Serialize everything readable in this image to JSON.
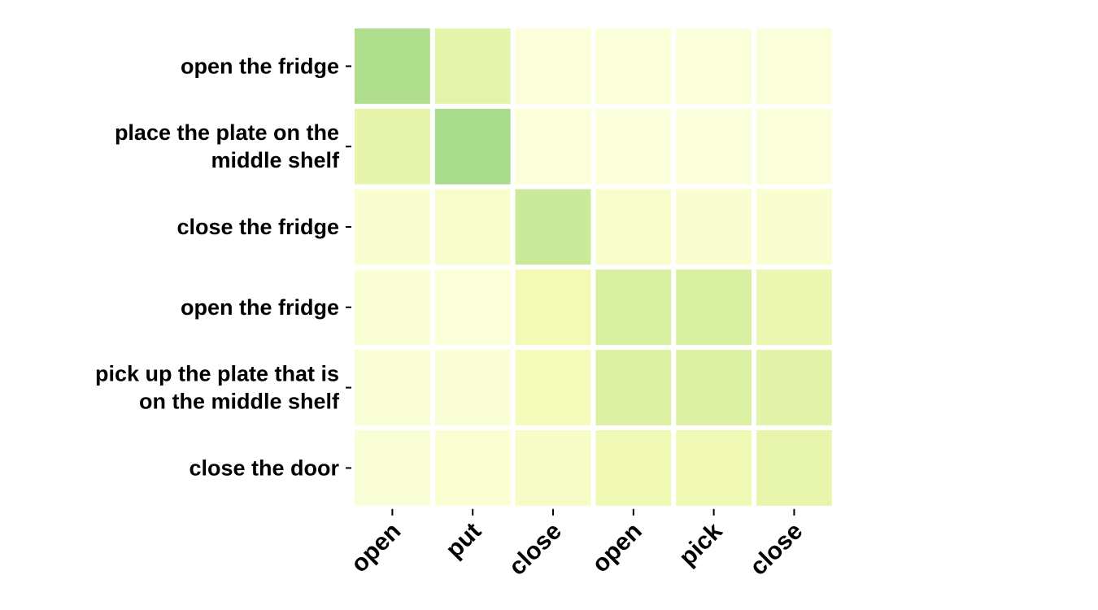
{
  "chart_data": {
    "type": "heatmap",
    "title": "",
    "xlabel": "",
    "ylabel": "",
    "x_labels": [
      "open",
      "put",
      "close",
      "open",
      "pick",
      "close"
    ],
    "y_labels": [
      [
        "open the fridge"
      ],
      [
        "place the plate on the",
        "middle shelf"
      ],
      [
        "close the fridge"
      ],
      [
        "open the fridge"
      ],
      [
        "pick up the plate that is",
        "on the middle shelf"
      ],
      [
        "close the door"
      ]
    ],
    "values": [
      [
        0.62,
        0.34,
        0.03,
        0.02,
        0.02,
        0.02
      ],
      [
        0.32,
        0.65,
        0.03,
        0.01,
        0.01,
        0.02
      ],
      [
        0.07,
        0.1,
        0.5,
        0.1,
        0.08,
        0.08
      ],
      [
        0.05,
        0.02,
        0.22,
        0.43,
        0.43,
        0.28
      ],
      [
        0.04,
        0.04,
        0.19,
        0.41,
        0.41,
        0.35
      ],
      [
        0.04,
        0.06,
        0.12,
        0.24,
        0.24,
        0.31
      ]
    ],
    "vmin": 0,
    "vmax": 1,
    "colormap": [
      "#fcffdd",
      "#f3fab6",
      "#d9efa2",
      "#a8dc8a"
    ],
    "grid": false,
    "colorbar": false
  }
}
